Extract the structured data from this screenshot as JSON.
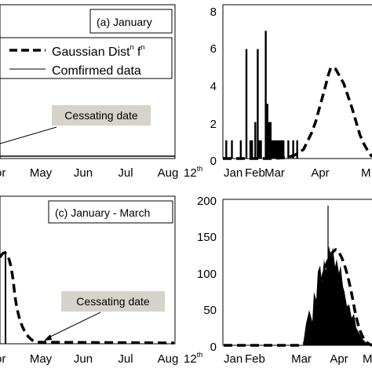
{
  "chart_data": [
    {
      "id": "a",
      "type": "bar",
      "panel_label": "(a) January",
      "x_ticks": [
        "Apr",
        "May",
        "Jun",
        "Jul",
        "Aug"
      ],
      "x_ticks_visible_prefix_cropped": "or",
      "end_label": {
        "main": "12",
        "sup": "th"
      },
      "legend": {
        "placement": "top-left",
        "entries": [
          {
            "label_main": "Gaussian Dist",
            "label_sup1": "n",
            "label_mid": " f",
            "label_sup2": "n",
            "style": "dashed"
          },
          {
            "label": "Comfirmed data",
            "style": "solid"
          }
        ]
      },
      "annotation": {
        "text": "Cessating date"
      },
      "curve": "flat near zero"
    },
    {
      "id": "b",
      "type": "bar",
      "x_ticks": [
        "Jan",
        "Feb",
        "Mar",
        "Apr",
        "M"
      ],
      "y_ticks": [
        "0",
        "2",
        "4",
        "6",
        "8"
      ],
      "ylim": [
        0,
        8
      ],
      "bars": {
        "x": [
          4,
          11,
          22,
          29,
          34,
          36,
          40,
          43,
          45,
          47,
          53,
          55,
          57,
          59,
          61,
          63,
          65,
          67,
          69,
          71,
          73,
          75,
          81,
          87,
          92
        ],
        "y": [
          1,
          1,
          1,
          6,
          1,
          1,
          2,
          6,
          1,
          1,
          7,
          3,
          2,
          2,
          1,
          1,
          1,
          1,
          1,
          1,
          1,
          1,
          1,
          1,
          1
        ]
      },
      "curve": {
        "label": "Gaussian Dist f",
        "x": [
          0,
          20,
          40,
          60,
          80,
          90,
          100,
          110,
          115,
          120,
          125,
          128,
          131,
          134,
          140,
          150,
          160,
          170,
          175,
          180,
          185
        ],
        "y": [
          0,
          0,
          0,
          0,
          0.05,
          0.2,
          0.5,
          1.4,
          2.0,
          2.8,
          3.6,
          4.1,
          4.6,
          5.0,
          4.9,
          4.1,
          2.8,
          1.3,
          0.8,
          0.4,
          0.1
        ]
      },
      "xlim": [
        0,
        185
      ],
      "x_tick_positions": [
        20,
        70,
        110,
        158,
        185
      ]
    },
    {
      "id": "c",
      "type": "line",
      "panel_label": "(c) January - March",
      "x_ticks": [
        "Apr",
        "May",
        "Jun",
        "Jul",
        "Aug"
      ],
      "x_ticks_visible_prefix_cropped": "or",
      "end_label": {
        "main": "12",
        "sup": "th"
      },
      "annotation": {
        "text": "Cessating date"
      }
    },
    {
      "id": "d",
      "type": "bar",
      "x_ticks": [
        "Jan",
        "Feb",
        "Mar",
        "Apr",
        "M"
      ],
      "y_ticks": [
        "0",
        "50",
        "100",
        "150",
        "200"
      ],
      "ylim": [
        0,
        200
      ],
      "curve_peak": 125
    }
  ]
}
